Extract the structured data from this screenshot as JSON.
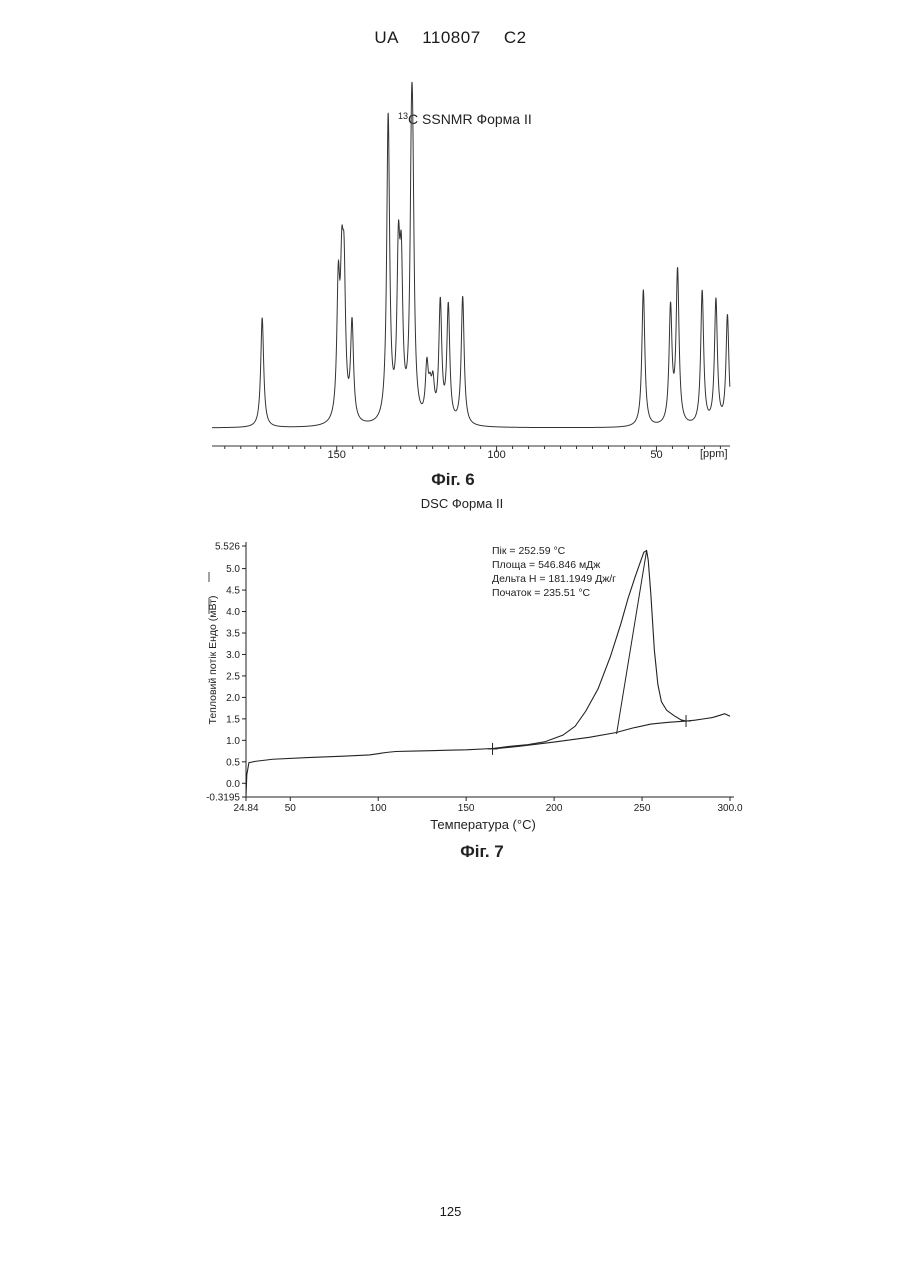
{
  "header": {
    "country": "UA",
    "number": "110807",
    "kind": "C2"
  },
  "page_number": "125",
  "chart_data": [
    {
      "type": "line",
      "title_sup": "13",
      "title": "C SSNMR Форма II",
      "caption": "Фіг. 6",
      "xlabel": "[ppm]",
      "xlim": [
        189,
        27
      ],
      "x_reversed": true,
      "x_ticks": [
        150,
        100,
        50
      ],
      "peaks": [
        {
          "x": 173.3,
          "h": 0.36
        },
        {
          "x": 149.5,
          "h": 0.42
        },
        {
          "x": 148.4,
          "h": 0.4
        },
        {
          "x": 147.7,
          "h": 0.42
        },
        {
          "x": 145.2,
          "h": 0.32
        },
        {
          "x": 133.9,
          "h": 1.0
        },
        {
          "x": 130.7,
          "h": 0.5
        },
        {
          "x": 129.8,
          "h": 0.45
        },
        {
          "x": 126.6,
          "h": 0.72
        },
        {
          "x": 126.2,
          "h": 0.52
        },
        {
          "x": 121.8,
          "h": 0.17
        },
        {
          "x": 120.8,
          "h": 0.08
        },
        {
          "x": 119.9,
          "h": 0.11
        },
        {
          "x": 117.6,
          "h": 0.39
        },
        {
          "x": 115.1,
          "h": 0.38
        },
        {
          "x": 110.6,
          "h": 0.42
        },
        {
          "x": 54.1,
          "h": 0.45
        },
        {
          "x": 45.6,
          "h": 0.38
        },
        {
          "x": 43.4,
          "h": 0.5
        },
        {
          "x": 35.7,
          "h": 0.44
        },
        {
          "x": 31.4,
          "h": 0.41
        },
        {
          "x": 27.8,
          "h": 0.36
        }
      ]
    },
    {
      "type": "line",
      "title": "DSC Форма II",
      "caption": "Фіг. 7",
      "xlabel": "Температура (°C)",
      "ylabel": "Тепловий потік Ендо (мВт)",
      "xlim": [
        24.84,
        300.0
      ],
      "ylim": [
        -0.3195,
        5.526
      ],
      "x_ticks": [
        "24.84",
        "50",
        "100",
        "150",
        "200",
        "250",
        "300.0"
      ],
      "y_ticks": [
        "5.526",
        "5.0",
        "4.5",
        "4.0",
        "3.5",
        "3.0",
        "2.5",
        "2.0",
        "1.5",
        "1.0",
        "0.5",
        "0.0",
        "-0.3195"
      ],
      "annotations": [
        "Пік = 252.59 °C",
        "Площа = 546.846 мДж",
        "Дельта H = 181.1949 Дж/г",
        "Початок = 235.51 °C"
      ],
      "series": [
        {
          "x": [
            24.84,
            25.3,
            26.5,
            30,
            40,
            60,
            80,
            95,
            100,
            105,
            110,
            120,
            130,
            140,
            150,
            165,
            175,
            185,
            195,
            205,
            212,
            218,
            225,
            232,
            238,
            242,
            246,
            249,
            251,
            252.59,
            253.5,
            255,
            257,
            259,
            261,
            264,
            268,
            272,
            275,
            280,
            285,
            290,
            294,
            297,
            300
          ],
          "y": [
            -0.3,
            0.2,
            0.48,
            0.51,
            0.56,
            0.6,
            0.63,
            0.66,
            0.69,
            0.72,
            0.74,
            0.75,
            0.76,
            0.77,
            0.78,
            0.81,
            0.86,
            0.9,
            0.97,
            1.12,
            1.33,
            1.68,
            2.2,
            2.95,
            3.72,
            4.3,
            4.8,
            5.15,
            5.38,
            5.42,
            5.2,
            4.4,
            3.1,
            2.3,
            1.9,
            1.7,
            1.58,
            1.48,
            1.45,
            1.47,
            1.5,
            1.53,
            1.58,
            1.62,
            1.56
          ]
        },
        {
          "x": [
            165,
            180,
            200,
            220,
            235,
            245,
            255,
            265,
            275
          ],
          "y": [
            0.8,
            0.86,
            0.96,
            1.07,
            1.18,
            1.29,
            1.38,
            1.42,
            1.45
          ]
        }
      ],
      "onset_line": {
        "x": [
          235.51,
          252.59
        ],
        "y": [
          1.15,
          5.42
        ]
      },
      "markers": [
        {
          "x": 165,
          "y": 0.8
        },
        {
          "x": 275,
          "y": 1.45
        }
      ]
    }
  ]
}
